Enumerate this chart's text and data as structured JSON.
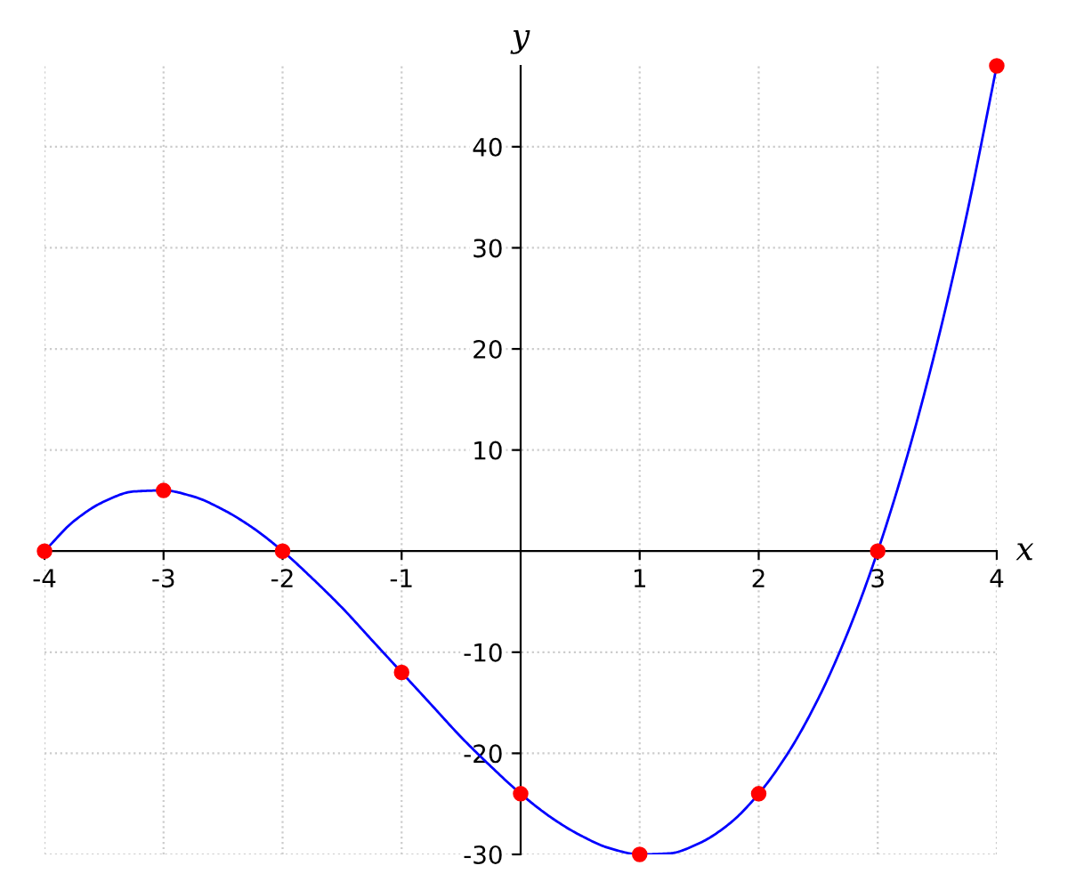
{
  "chart_data": {
    "type": "line",
    "xlabel": "x",
    "ylabel": "y",
    "xlim": [
      -4,
      4
    ],
    "ylim": [
      -30,
      48
    ],
    "xticks": [
      -4,
      -3,
      -2,
      -1,
      1,
      2,
      3,
      4
    ],
    "yticks": [
      -30,
      -20,
      -10,
      10,
      20,
      30,
      40
    ],
    "grid": true,
    "series": [
      {
        "color": "#0000ff",
        "x": [
          -4,
          -3.75,
          -3.5,
          -3.25,
          -3,
          -2.75,
          -2.5,
          -2.25,
          -2,
          -1.75,
          -1.5,
          -1.25,
          -1,
          -0.75,
          -0.5,
          -0.25,
          0,
          0.25,
          0.5,
          0.75,
          1,
          1.25,
          1.5,
          1.75,
          2,
          2.25,
          2.5,
          2.75,
          3,
          3.25,
          3.5,
          3.75,
          4
        ],
        "values": [
          0,
          3.0,
          4.9,
          5.9,
          6,
          5.4,
          4.1,
          2.3,
          0,
          -2.7,
          -5.6,
          -8.8,
          -12,
          -15.2,
          -18.4,
          -21.3,
          -24,
          -26.3,
          -28.1,
          -29.4,
          -30,
          -29.9,
          -28.9,
          -27.0,
          -24,
          -19.9,
          -14.6,
          -8.0,
          0,
          9.5,
          20.6,
          33.4,
          48
        ]
      },
      {
        "type": "scatter",
        "color": "#ff0000",
        "marker": "circle",
        "x": [
          -4,
          -3,
          -2,
          -1,
          0,
          1,
          2,
          3,
          4
        ],
        "values": [
          0,
          6,
          0,
          -12,
          -24,
          -30,
          -24,
          0,
          48
        ]
      }
    ]
  }
}
